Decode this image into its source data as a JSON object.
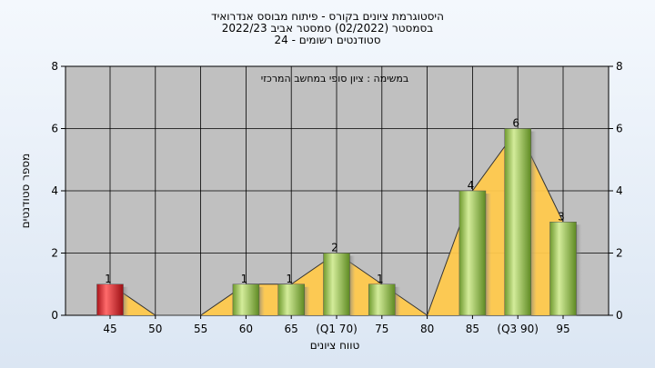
{
  "chart_data": {
    "type": "bar",
    "title_lines": [
      "היסטוגרמת ציונים בקורס - פיתוח מבוסס אנדרואיד",
      "בסמסטר  (02/2022)  סמסטר אביב 2022/23",
      "סטודנטים רשומים - 24"
    ],
    "subtitle": "במשימה : ציון סופי במחשב המרכזי",
    "xlabel": "טווח ציונים",
    "ylabel": "מספר סטודנטים",
    "categories": [
      "45",
      "50",
      "55",
      "60",
      "65",
      "(Q1 70)",
      "75",
      "80",
      "85",
      "(Q3 90)",
      "95"
    ],
    "values": [
      1,
      0,
      0,
      1,
      1,
      2,
      1,
      0,
      4,
      6,
      3
    ],
    "bar_colors": [
      "red",
      "green",
      "green",
      "green",
      "green",
      "green",
      "green",
      "green",
      "green",
      "green",
      "green"
    ],
    "yticks": [
      0,
      2,
      4,
      6,
      8
    ],
    "ylim": [
      0,
      8
    ],
    "grid": true,
    "colors": {
      "plot_bg": "#c0c0c0",
      "area": "#ffc94d",
      "bar_green": "#9bcb4f",
      "bar_red": "#e0242c"
    }
  }
}
